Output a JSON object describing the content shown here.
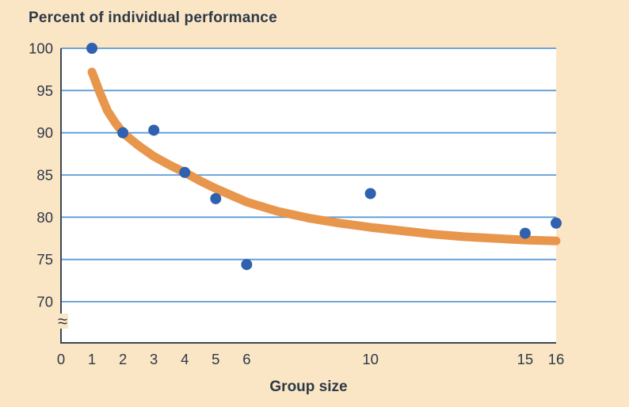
{
  "chart_data": {
    "type": "scatter",
    "title": "Percent of individual performance",
    "xlabel": "Group size",
    "ylabel": "",
    "x_ticks": [
      0,
      1,
      2,
      3,
      4,
      5,
      6,
      10,
      15,
      16
    ],
    "y_ticks": [
      100,
      95,
      90,
      85,
      80,
      75,
      70
    ],
    "xlim": [
      0,
      16
    ],
    "ylim": [
      70,
      100
    ],
    "grid": true,
    "legend": false,
    "y_axis_break": true,
    "axis_break_symbol": "≈",
    "points": [
      [
        1,
        100.0
      ],
      [
        2,
        90.0
      ],
      [
        3,
        90.3
      ],
      [
        4,
        85.3
      ],
      [
        5,
        82.2
      ],
      [
        6,
        74.4
      ],
      [
        10,
        82.8
      ],
      [
        15,
        78.1
      ],
      [
        16,
        79.3
      ]
    ],
    "trend_line": [
      [
        1,
        97.2
      ],
      [
        1.25,
        94.8
      ],
      [
        1.5,
        92.6
      ],
      [
        1.75,
        91.2
      ],
      [
        2,
        90.0
      ],
      [
        2.5,
        88.5
      ],
      [
        3,
        87.2
      ],
      [
        3.5,
        86.2
      ],
      [
        4,
        85.3
      ],
      [
        4.5,
        84.3
      ],
      [
        5,
        83.4
      ],
      [
        5.5,
        82.6
      ],
      [
        6,
        81.8
      ],
      [
        7,
        80.7
      ],
      [
        8,
        79.9
      ],
      [
        9,
        79.3
      ],
      [
        10,
        78.8
      ],
      [
        11,
        78.4
      ],
      [
        12,
        78.0
      ],
      [
        13,
        77.7
      ],
      [
        14,
        77.5
      ],
      [
        15,
        77.3
      ],
      [
        16,
        77.2
      ]
    ],
    "colors": {
      "background": "#FAE6C5",
      "plot_background": "#FFFFFF",
      "gridline": "#5B9BD5",
      "axis": "#3D4854",
      "point": "#3061AE",
      "trend": "#E8964C",
      "text": "#2E3947"
    }
  }
}
